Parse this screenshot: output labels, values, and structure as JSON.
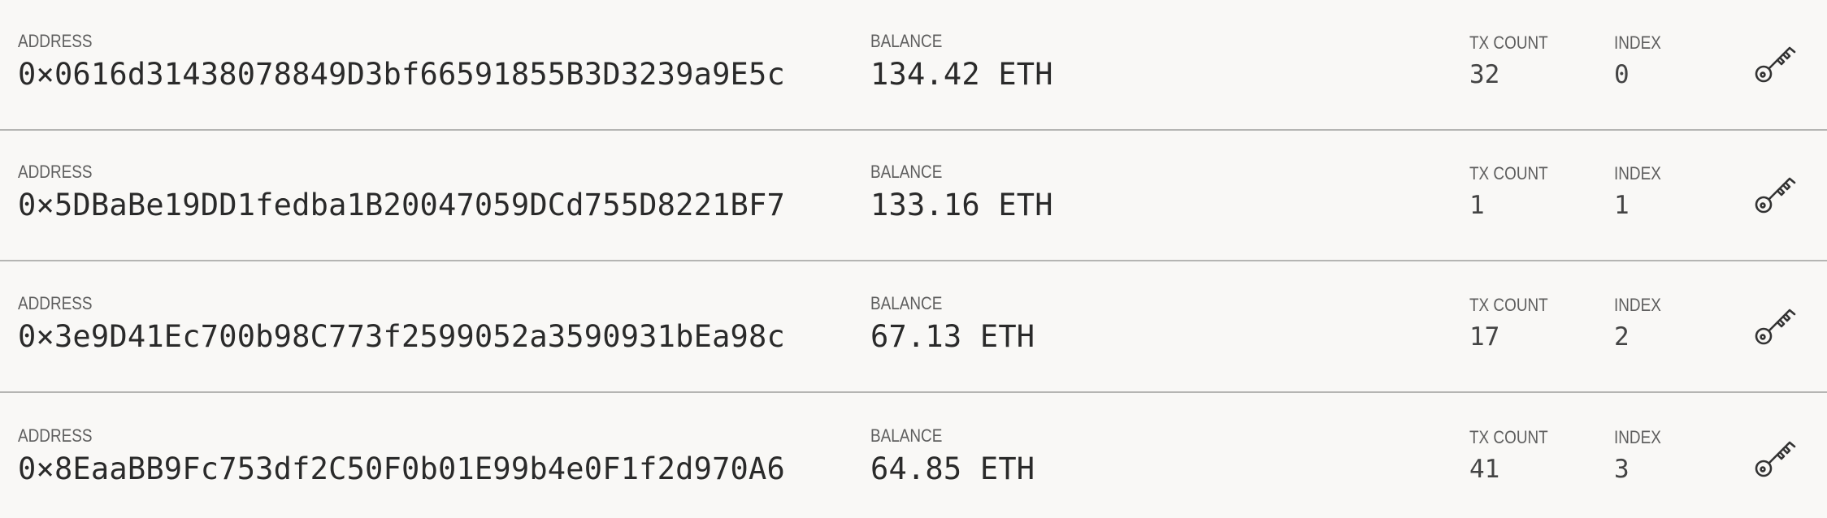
{
  "labels": {
    "address": "ADDRESS",
    "balance": "BALANCE",
    "tx_count": "TX COUNT",
    "index": "INDEX"
  },
  "accounts": [
    {
      "address": "0×0616d31438078849D3bf66591855B3D3239a9E5c",
      "balance": "134.42 ETH",
      "tx_count": "32",
      "index": "0",
      "action_icon": "key-icon"
    },
    {
      "address": "0×5DBaBe19DD1fedba1B20047059DCd755D8221BF7",
      "balance": "133.16 ETH",
      "tx_count": "1",
      "index": "1",
      "action_icon": "key-icon"
    },
    {
      "address": "0×3e9D41Ec700b98C773f2599052a3590931bEa98c",
      "balance": "67.13 ETH",
      "tx_count": "17",
      "index": "2",
      "action_icon": "key-icon"
    },
    {
      "address": "0×8EaaBB9Fc753df2C50F0b01E99b4e0F1f2d970A6",
      "balance": "64.85 ETH",
      "tx_count": "41",
      "index": "3",
      "action_icon": "key-icon"
    }
  ]
}
